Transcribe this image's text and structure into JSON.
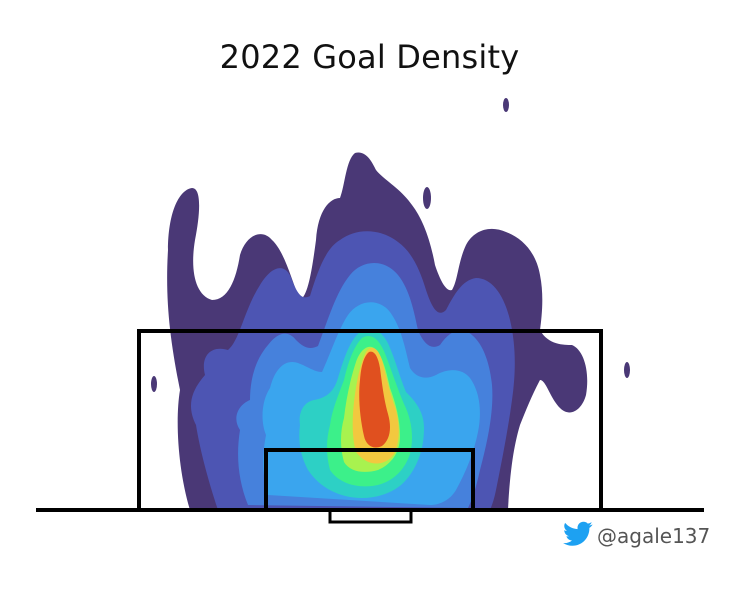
{
  "chart_data": {
    "type": "heatmap",
    "title": "2022 Goal Density",
    "xlabel": "",
    "ylabel": "",
    "grid": false,
    "legend": "none",
    "levels": [
      {
        "level": 1,
        "color": "#4a3876"
      },
      {
        "level": 2,
        "color": "#4d55b3"
      },
      {
        "level": 3,
        "color": "#4681dc"
      },
      {
        "level": 4,
        "color": "#3aa5ee"
      },
      {
        "level": 5,
        "color": "#2dd0c5"
      },
      {
        "level": 6,
        "color": "#3cf08a"
      },
      {
        "level": 7,
        "color": "#a8f24f"
      },
      {
        "level": 8,
        "color": "#f2c83f"
      },
      {
        "level": 9,
        "color": "#e0501f"
      }
    ]
  },
  "credit": {
    "handle": "@agale137",
    "icon": "twitter-bird-icon",
    "icon_color": "#1da1f2"
  }
}
